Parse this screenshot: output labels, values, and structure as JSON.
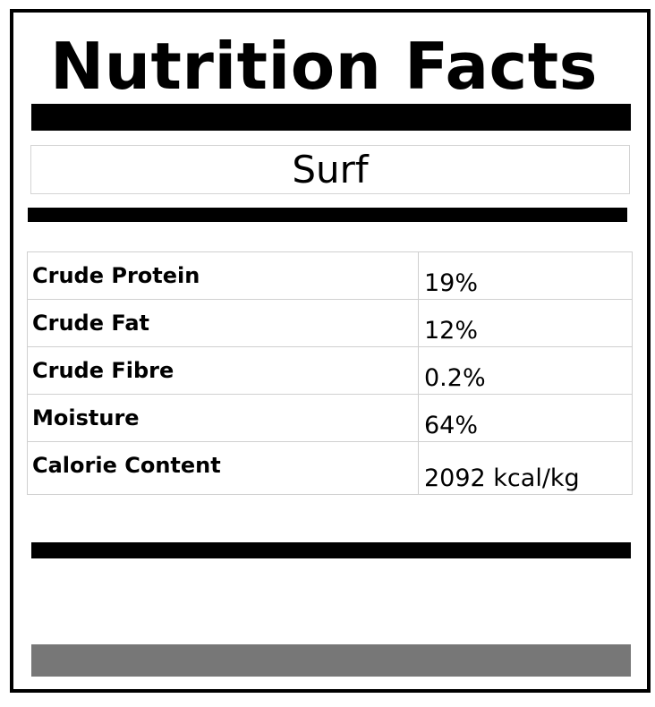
{
  "label": {
    "title": "Nutrition Facts",
    "product_name": "Surf",
    "nutrients": [
      {
        "name": "Crude Protein",
        "value": "19%"
      },
      {
        "name": "Crude Fat",
        "value": "12%"
      },
      {
        "name": "Crude Fibre",
        "value": "0.2%"
      },
      {
        "name": "Moisture",
        "value": "64%"
      },
      {
        "name": "Calorie Content",
        "value": "2092 kcal/kg"
      }
    ]
  },
  "colors": {
    "text": "#000000",
    "bars": "#000000",
    "footer_bar": "#777777",
    "grid_lines": "#d0d0d0"
  }
}
